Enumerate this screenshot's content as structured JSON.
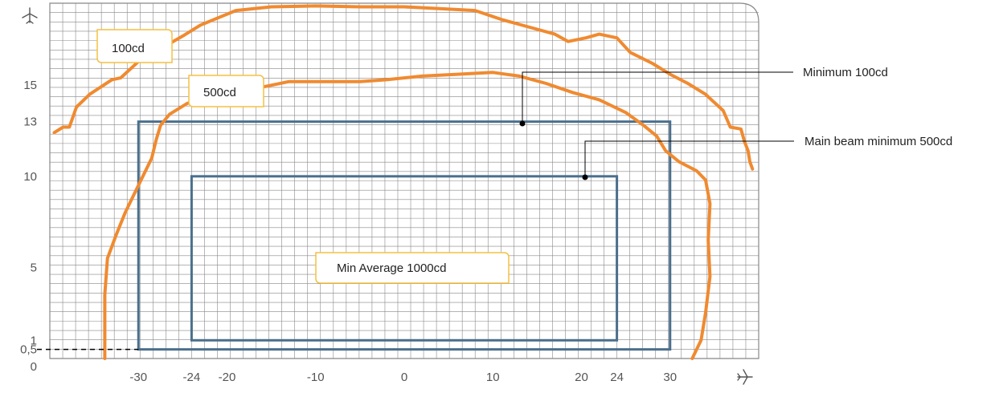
{
  "chart_data": {
    "type": "line",
    "title": "",
    "xlabel": "",
    "ylabel": "",
    "x_ticks": [
      "-30",
      "-24",
      "-20",
      "-10",
      "0",
      "10",
      "20",
      "24",
      "30"
    ],
    "y_ticks": [
      "0",
      "0,5",
      "1",
      "5",
      "10",
      "13",
      "15"
    ],
    "xlim": [
      -40,
      40
    ],
    "ylim": [
      0,
      19.5
    ],
    "grid": true,
    "colors": {
      "grid": "#888888",
      "contour": "#f08a30",
      "box": "#4a6f8c",
      "label_border": "#f5c040"
    },
    "icons": {
      "x_axis": "airplane-right-icon",
      "y_axis": "airplane-up-icon"
    },
    "series": [
      {
        "name": "100cd",
        "points": [
          [
            -39.5,
            12.4
          ],
          [
            -38.5,
            12.7
          ],
          [
            -37.8,
            12.7
          ],
          [
            -37,
            13.8
          ],
          [
            -35.5,
            14.5
          ],
          [
            -33,
            15.3
          ],
          [
            -32,
            15.4
          ],
          [
            -30,
            16.3
          ],
          [
            -27.5,
            17
          ],
          [
            -25,
            17.7
          ],
          [
            -23,
            18.3
          ],
          [
            -21,
            18.7
          ],
          [
            -19,
            19.1
          ],
          [
            -15,
            19.3
          ],
          [
            -10,
            19.35
          ],
          [
            -5,
            19.3
          ],
          [
            0,
            19.3
          ],
          [
            4,
            19.2
          ],
          [
            8,
            19.1
          ],
          [
            11,
            18.6
          ],
          [
            14,
            18.2
          ],
          [
            17,
            17.8
          ],
          [
            18.5,
            17.4
          ],
          [
            20.5,
            17.6
          ],
          [
            22,
            17.8
          ],
          [
            24,
            17.6
          ],
          [
            25.5,
            16.8
          ],
          [
            28,
            16.2
          ],
          [
            30,
            15.6
          ],
          [
            32,
            15.1
          ],
          [
            34,
            14.5
          ],
          [
            36,
            13.6
          ],
          [
            36.8,
            12.7
          ],
          [
            38,
            12.6
          ],
          [
            38.4,
            11.9
          ],
          [
            38.8,
            11.4
          ],
          [
            39,
            10.8
          ],
          [
            39.3,
            10.4
          ]
        ]
      },
      {
        "name": "500cd",
        "points": [
          [
            -33.8,
            0
          ],
          [
            -33.8,
            3.5
          ],
          [
            -33.5,
            5.5
          ],
          [
            -32.5,
            6.8
          ],
          [
            -31.5,
            8
          ],
          [
            -30.5,
            9
          ],
          [
            -29.5,
            10
          ],
          [
            -28.5,
            11
          ],
          [
            -28,
            12
          ],
          [
            -27.5,
            12.8
          ],
          [
            -26.5,
            13.4
          ],
          [
            -24.5,
            14
          ],
          [
            -21,
            14.5
          ],
          [
            -17,
            14.8
          ],
          [
            -13,
            15.2
          ],
          [
            -9,
            15.2
          ],
          [
            -5,
            15.2
          ],
          [
            -2,
            15.3
          ],
          [
            2,
            15.5
          ],
          [
            6,
            15.6
          ],
          [
            10,
            15.7
          ],
          [
            13,
            15.5
          ],
          [
            16,
            15.1
          ],
          [
            19,
            14.6
          ],
          [
            22,
            14.2
          ],
          [
            25,
            13.5
          ],
          [
            27,
            12.8
          ],
          [
            28.5,
            12.2
          ],
          [
            29.5,
            11.4
          ],
          [
            31,
            10.8
          ],
          [
            33,
            10.3
          ],
          [
            34,
            9.8
          ],
          [
            34.5,
            8.5
          ],
          [
            34.3,
            6.5
          ],
          [
            34.5,
            4.5
          ],
          [
            34,
            2.5
          ],
          [
            33.5,
            1
          ],
          [
            32.5,
            0
          ]
        ]
      }
    ],
    "regions": [
      {
        "name": "Min Average 1000cd",
        "x": [
          -24,
          24
        ],
        "y": [
          1,
          10
        ]
      },
      {
        "name": "",
        "x": [
          -30,
          30
        ],
        "y": [
          0.5,
          13
        ]
      }
    ],
    "annotations": {
      "label_100cd": "100cd",
      "label_500cd": "500cd",
      "label_min_average": "Min Average  1000cd",
      "callout_minimum": "Minimum 100cd",
      "callout_main_beam": "Main beam minimum 500cd"
    }
  }
}
